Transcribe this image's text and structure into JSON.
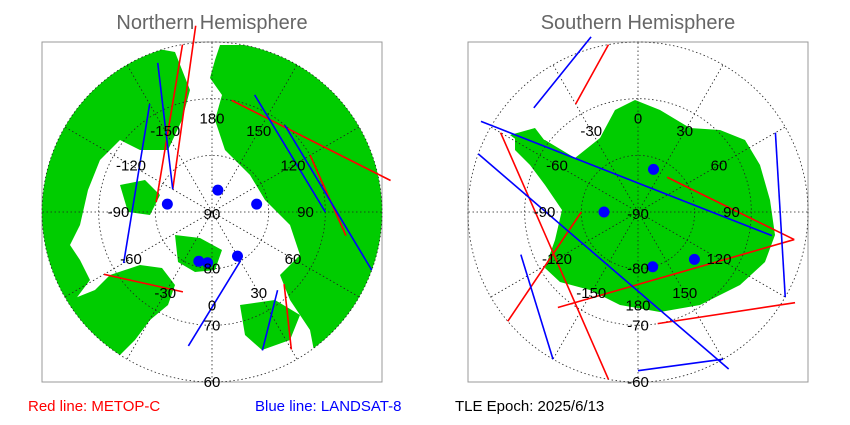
{
  "colors": {
    "land": "#00cc00",
    "frame": "#999999",
    "grid": "#222222",
    "title": "#666666",
    "red_series": "#ff0000",
    "blue_series": "#0000ff"
  },
  "legend": {
    "red_label": "Red line: METOP-C",
    "blue_label": "Blue line: LANDSAT-8",
    "epoch_label": "TLE Epoch: 2025/6/13"
  },
  "chart_data": [
    {
      "type": "polar-map",
      "title": "Northern Hemisphere",
      "pole": "north",
      "grid": true,
      "latitude_circles": [
        80,
        70,
        60
      ],
      "longitude_spokes_deg": [
        0,
        30,
        60,
        90,
        120,
        150,
        180,
        -150,
        -120,
        -90,
        -60,
        -30
      ],
      "latitude_labels": [
        "80",
        "70",
        "60"
      ],
      "longitude_labels": [
        "180",
        "150",
        "120",
        "90",
        "60",
        "30",
        "0",
        "-30",
        "-60",
        "-90",
        "-120",
        "-150"
      ],
      "pole_label": "90",
      "series": [
        {
          "name": "METOP-C",
          "color": "red",
          "tracks": [
            {
              "lon": [
                -175,
                -120
              ],
              "lat": [
                57,
                82
              ]
            },
            {
              "lon": [
                -170,
                -100
              ],
              "lat": [
                60,
                80
              ]
            },
            {
              "lon": [
                120,
                80
              ],
              "lat": [
                70,
                66
              ]
            },
            {
              "lon": [
                -60,
                -20
              ],
              "lat": [
                68,
                75
              ]
            },
            {
              "lon": [
                170,
                100
              ],
              "lat": [
                70,
                58
              ]
            },
            {
              "lon": [
                45,
                30
              ],
              "lat": [
                72,
                62
              ]
            }
          ]
        },
        {
          "name": "LANDSAT-8",
          "color": "blue",
          "tracks": [
            {
              "lon": [
                -160,
                -120
              ],
              "lat": [
                62,
                82
              ]
            },
            {
              "lon": [
                -150,
                -60
              ],
              "lat": [
                68,
                72
              ]
            },
            {
              "lon": [
                140,
                70
              ],
              "lat": [
                70,
                60
              ]
            },
            {
              "lon": [
                -10,
                30
              ],
              "lat": [
                66,
                80
              ]
            },
            {
              "lon": [
                160,
                90
              ],
              "lat": [
                68,
                70
              ]
            },
            {
              "lon": [
                20,
                40
              ],
              "lat": [
                64,
                72
              ]
            }
          ]
        }
      ],
      "pass_points": [
        {
          "lon": 165,
          "lat": 86
        },
        {
          "lon": -100,
          "lat": 82
        },
        {
          "lon": 100,
          "lat": 82
        },
        {
          "lon": 30,
          "lat": 81
        },
        {
          "lon": -15,
          "lat": 81
        },
        {
          "lon": -5,
          "lat": 81
        }
      ]
    },
    {
      "type": "polar-map",
      "title": "Southern Hemisphere",
      "pole": "south",
      "grid": true,
      "latitude_circles": [
        -80,
        -70,
        -60
      ],
      "longitude_spokes_deg": [
        0,
        30,
        60,
        90,
        120,
        150,
        180,
        -150,
        -120,
        -90,
        -60,
        -30
      ],
      "latitude_labels": [
        "-80",
        "-70",
        "-60"
      ],
      "longitude_labels": [
        "0",
        "30",
        "60",
        "90",
        "120",
        "150",
        "180",
        "-150",
        "-120",
        "-90",
        "-60",
        "-30"
      ],
      "pole_label": "-90",
      "series": [
        {
          "name": "METOP-C",
          "color": "red",
          "tracks": [
            {
              "lon": [
                -30,
                -10
              ],
              "lat": [
                -68,
                -60
              ]
            },
            {
              "lon": [
                -90,
                -130
              ],
              "lat": [
                -80,
                -60
              ]
            },
            {
              "lon": [
                40,
                100
              ],
              "lat": [
                -82,
                -62
              ]
            },
            {
              "lon": [
                170,
                120
              ],
              "lat": [
                -70,
                -58
              ]
            },
            {
              "lon": [
                -140,
                100
              ],
              "lat": [
                -68,
                -62
              ]
            },
            {
              "lon": [
                -60,
                -170
              ],
              "lat": [
                -62,
                -60
              ]
            }
          ]
        },
        {
          "name": "LANDSAT-8",
          "color": "blue",
          "tracks": [
            {
              "lon": [
                -45,
                -15
              ],
              "lat": [
                -64,
                -58
              ]
            },
            {
              "lon": [
                -70,
                150
              ],
              "lat": [
                -60,
                -58
              ]
            },
            {
              "lon": [
                60,
                120
              ],
              "lat": [
                -62,
                -60
              ]
            },
            {
              "lon": [
                -150,
                -110
              ],
              "lat": [
                -60,
                -68
              ]
            },
            {
              "lon": [
                -60,
                100
              ],
              "lat": [
                -58,
                -66
              ]
            },
            {
              "lon": [
                150,
                180
              ],
              "lat": [
                -60,
                -62
              ]
            }
          ]
        }
      ],
      "pass_points": [
        {
          "lon": 20,
          "lat": -82
        },
        {
          "lon": -90,
          "lat": -84
        },
        {
          "lon": 165,
          "lat": -80
        },
        {
          "lon": 130,
          "lat": -77
        }
      ]
    }
  ]
}
